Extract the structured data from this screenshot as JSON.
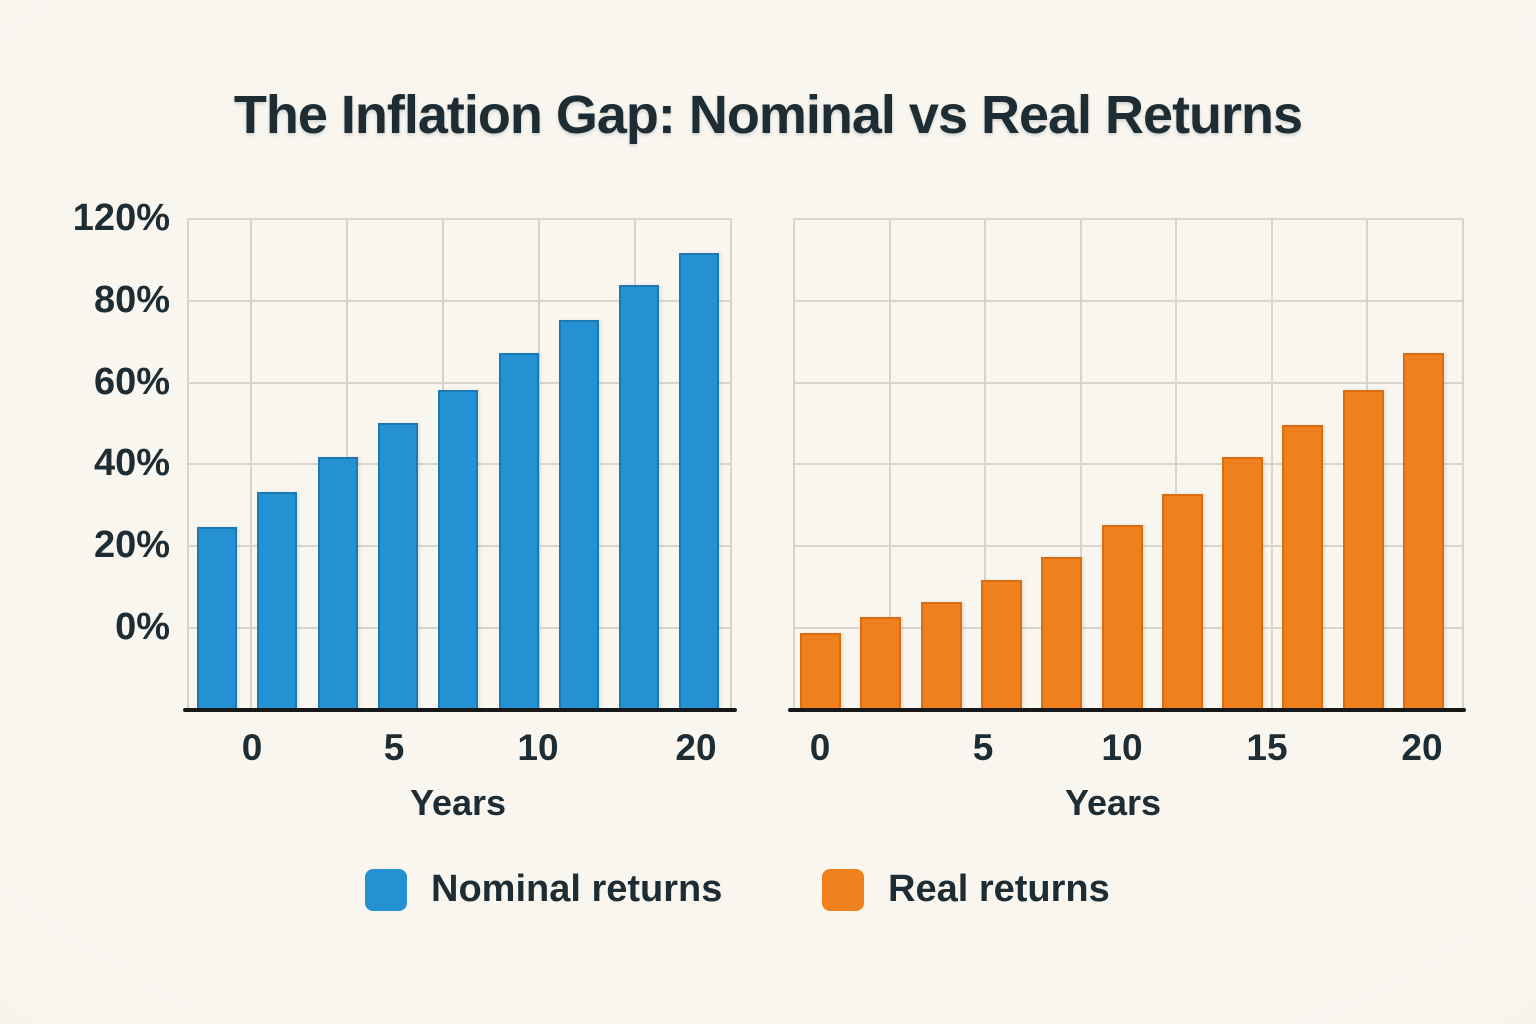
{
  "title": "The Inflation Gap: Nominal vs Real Returns",
  "colors": {
    "background": "#f7f4ed",
    "text": "#1e2d33",
    "gridline": "#d8d5cf",
    "axis_line": "#16181a",
    "nominal_blue": "#2492d2",
    "real_orange": "#f0801e"
  },
  "legend": {
    "items": [
      {
        "label": "Nominal returns",
        "color": "#2492d2"
      },
      {
        "label": "Real returns",
        "color": "#f0801e"
      }
    ],
    "position": "bottom"
  },
  "chart_data": [
    {
      "type": "bar",
      "name": "nominal-returns",
      "series_label": "Nominal returns",
      "xlabel": "Years",
      "x_tick_labels": [
        "0",
        "5",
        "10",
        "20"
      ],
      "y_tick_labels": [
        "120%",
        "80%",
        "60%",
        "40%",
        "20%",
        "0%"
      ],
      "y_tick_values": [
        120,
        80,
        60,
        40,
        20,
        0
      ],
      "values_pct": [
        24.5,
        33,
        41.5,
        50,
        58,
        67,
        75,
        83.5,
        91.5
      ],
      "bar_color": "#2492d2",
      "grid": true,
      "ylim": [
        -20,
        120
      ],
      "notes": "bars extend below the 0% gridline to the baseline"
    },
    {
      "type": "bar",
      "name": "real-returns",
      "series_label": "Real returns",
      "xlabel": "Years",
      "x_tick_labels": [
        "0",
        "5",
        "10",
        "15",
        "20"
      ],
      "y_tick_labels": [],
      "values_pct": [
        -1.5,
        2.5,
        6,
        11.5,
        17,
        25,
        32.5,
        41.5,
        49.5,
        58,
        67
      ],
      "bar_color": "#f0801e",
      "grid": true,
      "ylim": [
        -20,
        120
      ],
      "notes": "shares the y-scale of the left chart; first bar dips just below 0%"
    }
  ]
}
